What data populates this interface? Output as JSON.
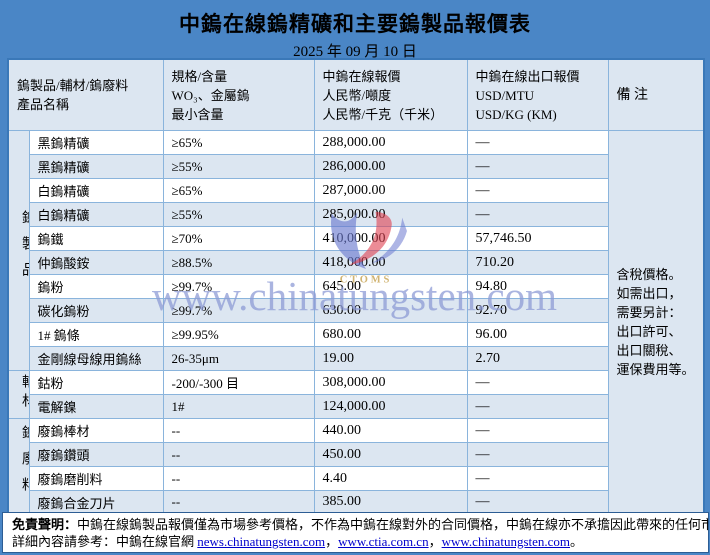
{
  "page": {
    "title": "中鎢在線鎢精礦和主要鎢製品報價表",
    "date": "2025 年 09 月 10 日",
    "background_color": "#4a86c6",
    "alt_row_color": "#dce6f1"
  },
  "watermark": {
    "text": "www.chinatungsten.com",
    "logo_text": "CTOMS",
    "logo_blue": "#6b79cf",
    "logo_red": "#e04050",
    "logo_gold": "#c9a85a"
  },
  "table": {
    "header": {
      "product_lines": [
        "鎢製品/輔材/鎢廢料",
        "產品名稱"
      ],
      "spec_lines": [
        "規格/含量",
        "WO₃、金屬鎢",
        "最小含量"
      ],
      "cny_lines": [
        "中鎢在線報價",
        "人民幣/噸度",
        "人民幣/千克（千米）"
      ],
      "usd_lines": [
        "中鎢在線出口報價",
        "USD/MTU",
        "USD/KG (KM)"
      ],
      "remark": "備 注"
    },
    "groups": [
      {
        "label": "鎢製品",
        "span": 10
      },
      {
        "label": "輔材",
        "span": 2
      },
      {
        "label": "鎢廢料",
        "span": 4
      }
    ],
    "rows": [
      {
        "product": "黑鎢精礦",
        "spec": "≥65%",
        "cny": "288,000.00",
        "usd": "—"
      },
      {
        "product": "黑鎢精礦",
        "spec": "≥55%",
        "cny": "286,000.00",
        "usd": "—"
      },
      {
        "product": "白鎢精礦",
        "spec": "≥65%",
        "cny": "287,000.00",
        "usd": "—"
      },
      {
        "product": "白鎢精礦",
        "spec": "≥55%",
        "cny": "285,000.00",
        "usd": "—"
      },
      {
        "product": "鎢鐵",
        "spec": "≥70%",
        "cny": "410,000.00",
        "usd": "57,746.50"
      },
      {
        "product": "仲鎢酸銨",
        "spec": "≥88.5%",
        "cny": "418,000.00",
        "usd": "710.20"
      },
      {
        "product": "鎢粉",
        "spec": "≥99.7%",
        "cny": "645.00",
        "usd": "94.80"
      },
      {
        "product": "碳化鎢粉",
        "spec": "≥99.7%",
        "cny": "630.00",
        "usd": "92.70"
      },
      {
        "product": "1# 鎢條",
        "spec": "≥99.95%",
        "cny": "680.00",
        "usd": "96.00"
      },
      {
        "product": "金剛線母線用鎢絲",
        "spec": "26-35μm",
        "cny": "19.00",
        "usd": "2.70"
      },
      {
        "product": "鈷粉",
        "spec": "-200/-300 目",
        "cny": "308,000.00",
        "usd": "—"
      },
      {
        "product": "電解鎳",
        "spec": "1#",
        "cny": "124,000.00",
        "usd": "—"
      },
      {
        "product": "廢鎢棒材",
        "spec": "--",
        "cny": "440.00",
        "usd": "—"
      },
      {
        "product": "廢鎢鑽頭",
        "spec": "--",
        "cny": "450.00",
        "usd": "—"
      },
      {
        "product": "廢鎢磨削料",
        "spec": "--",
        "cny": "4.40",
        "usd": "—"
      },
      {
        "product": "廢鎢合金刀片",
        "spec": "--",
        "cny": "385.00",
        "usd": "—"
      }
    ],
    "remark_lines": [
      "含稅價格。",
      "如需出口，",
      "需要另計：",
      "出口許可、",
      "出口關稅、",
      "運保費用等。"
    ]
  },
  "footer": {
    "disclaimer_bold": "免責聲明：",
    "disclaimer_text": "中鎢在線鎢製品報價僅為市場參考價格，不作為中鎢在線對外的合同價格，中鎢在線亦不承擔因此帶來的任何市場風險；",
    "reference_prefix": "詳細內容請參考：中鎢在線官網 ",
    "links": [
      "news.chinatungsten.com",
      "www.ctia.com.cn",
      "www.chinatungsten.com"
    ],
    "link_separator": "，",
    "line_end": "。"
  }
}
